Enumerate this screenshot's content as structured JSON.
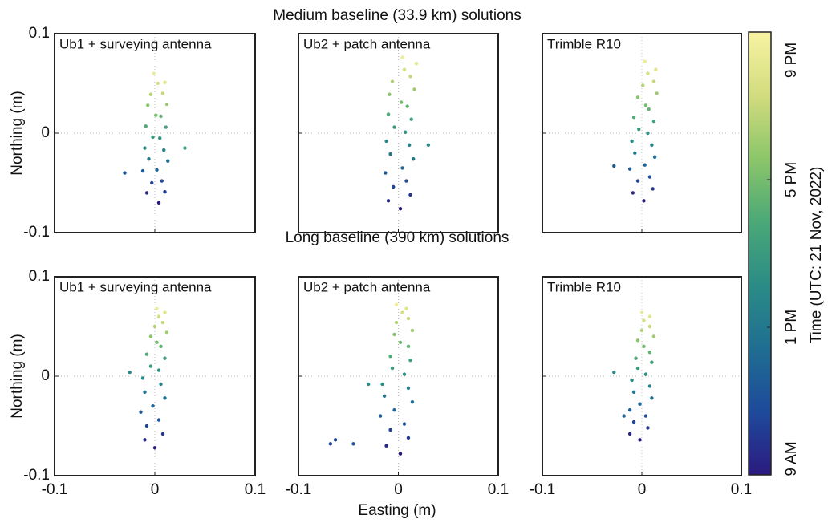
{
  "row_titles": [
    "Medium baseline (33.9 km) solutions",
    "Long baseline (390 km) solutions"
  ],
  "x_label": "Easting (m)",
  "y_label": "Northing (m)",
  "colorbar": {
    "label": "Time (UTC: 21 Nov, 2022)",
    "lim": [
      9,
      21
    ],
    "ticks": [
      {
        "value": 9,
        "label": "9 AM"
      },
      {
        "value": 13,
        "label": "1 PM"
      },
      {
        "value": 17,
        "label": "5 PM"
      },
      {
        "value": 21,
        "label": "9 PM"
      }
    ],
    "colors": [
      "#2b1a7f",
      "#1e4a9c",
      "#1f6e92",
      "#2a8c86",
      "#4aa877",
      "#8cc66a",
      "#d2dc7e",
      "#f8f3a2"
    ]
  },
  "chart_data": [
    {
      "type": "scatter",
      "title": "Ub1 + surveying antenna",
      "xlim": [
        -0.1,
        0.1
      ],
      "ylim": [
        -0.1,
        0.1
      ],
      "xticks": [
        -0.1,
        0,
        0.1
      ],
      "yticks": [
        -0.1,
        0,
        0.1
      ],
      "grid": true,
      "x": [
        0.004,
        -0.008,
        0.01,
        -0.003,
        0.007,
        -0.012,
        0.002,
        0.013,
        -0.006,
        0.009,
        -0.01,
        0.005,
        -0.002,
        0.011,
        -0.009,
        0.006,
        0.001,
        -0.007,
        0.012,
        -0.004,
        0.008,
        0.003,
        0.01,
        -0.001,
        -0.03,
        0.03
      ],
      "y": [
        -0.07,
        -0.06,
        -0.059,
        -0.05,
        -0.048,
        -0.038,
        -0.037,
        -0.028,
        -0.026,
        -0.017,
        -0.015,
        -0.005,
        -0.004,
        0.006,
        0.007,
        0.017,
        0.018,
        0.028,
        0.029,
        0.039,
        0.04,
        0.05,
        0.051,
        0.06,
        -0.04,
        -0.015
      ],
      "t": [
        9,
        9.5,
        10,
        10.5,
        11,
        11.5,
        12,
        12.5,
        13,
        13.5,
        14,
        14.5,
        15,
        15.5,
        16,
        16.5,
        17,
        17.5,
        18,
        18.5,
        19,
        19.5,
        20,
        20.5,
        11.5,
        15
      ]
    },
    {
      "type": "scatter",
      "title": "Ub2 + patch antenna",
      "xlim": [
        -0.1,
        0.1
      ],
      "ylim": [
        -0.1,
        0.1
      ],
      "xticks": [
        -0.1,
        0,
        0.1
      ],
      "yticks": [
        -0.1,
        0,
        0.1
      ],
      "grid": true,
      "x": [
        0.002,
        -0.01,
        0.012,
        -0.005,
        0.008,
        -0.013,
        0.004,
        0.015,
        -0.008,
        0.011,
        -0.012,
        0.007,
        -0.004,
        0.013,
        -0.01,
        0.009,
        0.003,
        -0.009,
        0.016,
        -0.006,
        0.012,
        0.006,
        0.018,
        0.004,
        0.03
      ],
      "y": [
        -0.076,
        -0.068,
        -0.062,
        -0.054,
        -0.048,
        -0.04,
        -0.035,
        -0.026,
        -0.021,
        -0.012,
        -0.008,
        0.001,
        0.006,
        0.014,
        0.019,
        0.027,
        0.031,
        0.039,
        0.044,
        0.052,
        0.057,
        0.064,
        0.07,
        0.076,
        -0.012
      ],
      "t": [
        9,
        9.5,
        10,
        10.5,
        11,
        11.5,
        12,
        12.5,
        13,
        13.5,
        14,
        14.5,
        15,
        15.5,
        16,
        16.5,
        17,
        17.5,
        18,
        18.5,
        19,
        19.5,
        20,
        20.5,
        14
      ]
    },
    {
      "type": "scatter",
      "title": "Trimble R10",
      "xlim": [
        -0.1,
        0.1
      ],
      "ylim": [
        -0.1,
        0.1
      ],
      "xticks": [
        -0.1,
        0,
        0.1
      ],
      "yticks": [
        -0.1,
        0,
        0.1
      ],
      "grid": true,
      "x": [
        0.002,
        -0.009,
        0.011,
        -0.004,
        0.008,
        -0.012,
        0.003,
        0.013,
        -0.007,
        0.01,
        -0.01,
        0.006,
        -0.003,
        0.012,
        -0.008,
        0.007,
        0.004,
        -0.004,
        0.015,
        0.001,
        0.012,
        0.006,
        0.014,
        0.003,
        -0.028
      ],
      "y": [
        -0.068,
        -0.06,
        -0.056,
        -0.048,
        -0.044,
        -0.036,
        -0.032,
        -0.024,
        -0.02,
        -0.012,
        -0.008,
        0.0,
        0.004,
        0.012,
        0.016,
        0.024,
        0.028,
        0.036,
        0.04,
        0.048,
        0.052,
        0.06,
        0.064,
        0.072,
        -0.033
      ],
      "t": [
        9,
        9.5,
        10,
        10.5,
        11,
        11.5,
        12,
        12.5,
        13,
        13.5,
        14,
        14.5,
        15,
        15.5,
        16,
        16.5,
        17,
        17.5,
        18,
        18.5,
        19,
        19.5,
        20,
        20.5,
        11.5
      ]
    },
    {
      "type": "scatter",
      "title": "Ub1 + surveying antenna",
      "xlim": [
        -0.1,
        0.1
      ],
      "ylim": [
        -0.1,
        0.1
      ],
      "xticks": [
        -0.1,
        0,
        0.1
      ],
      "yticks": [
        -0.1,
        0,
        0.1
      ],
      "grid": true,
      "x": [
        0.0,
        -0.01,
        0.008,
        -0.008,
        0.004,
        -0.014,
        -0.002,
        0.01,
        -0.01,
        0.006,
        -0.012,
        0.004,
        -0.004,
        0.01,
        -0.008,
        0.006,
        0.002,
        -0.004,
        0.012,
        0.0,
        0.008,
        0.004,
        0.01,
        0.002,
        -0.025
      ],
      "y": [
        -0.072,
        -0.064,
        -0.058,
        -0.05,
        -0.044,
        -0.036,
        -0.03,
        -0.022,
        -0.016,
        -0.008,
        -0.002,
        0.006,
        0.01,
        0.018,
        0.022,
        0.03,
        0.034,
        0.04,
        0.044,
        0.05,
        0.054,
        0.06,
        0.064,
        0.068,
        0.004
      ],
      "t": [
        9,
        9.5,
        10,
        10.5,
        11,
        11.5,
        12,
        12.5,
        13,
        13.5,
        14,
        14.5,
        15,
        15.5,
        16,
        16.5,
        17,
        17.5,
        18,
        18.5,
        19,
        19.5,
        20,
        20.5,
        14
      ]
    },
    {
      "type": "scatter",
      "title": "Ub2 + patch antenna",
      "xlim": [
        -0.1,
        0.1
      ],
      "ylim": [
        -0.1,
        0.1
      ],
      "xticks": [
        -0.1,
        0,
        0.1
      ],
      "yticks": [
        -0.1,
        0,
        0.1
      ],
      "grid": true,
      "x": [
        0.002,
        -0.012,
        0.01,
        -0.008,
        0.006,
        -0.018,
        -0.004,
        0.014,
        -0.014,
        0.01,
        -0.016,
        0.006,
        -0.006,
        0.012,
        -0.008,
        0.01,
        0.002,
        -0.004,
        0.014,
        -0.002,
        0.01,
        0.004,
        0.008,
        -0.002,
        -0.063,
        -0.068,
        -0.045,
        -0.03
      ],
      "y": [
        -0.078,
        -0.07,
        -0.062,
        -0.054,
        -0.048,
        -0.04,
        -0.034,
        -0.026,
        -0.02,
        -0.012,
        -0.008,
        0.002,
        0.008,
        0.016,
        0.02,
        0.03,
        0.034,
        0.042,
        0.046,
        0.054,
        0.058,
        0.064,
        0.068,
        0.072,
        -0.064,
        -0.068,
        -0.068,
        -0.008
      ],
      "t": [
        9,
        9.5,
        10,
        10.5,
        11,
        11.5,
        12,
        12.5,
        13,
        13.5,
        14,
        14.5,
        15,
        15.5,
        16,
        16.5,
        17,
        17.5,
        18,
        18.5,
        19,
        19.5,
        20,
        20.5,
        10.5,
        10.5,
        11,
        14
      ]
    },
    {
      "type": "scatter",
      "title": "Trimble R10",
      "xlim": [
        -0.1,
        0.1
      ],
      "ylim": [
        -0.1,
        0.1
      ],
      "xticks": [
        -0.1,
        0,
        0.1
      ],
      "yticks": [
        -0.1,
        0,
        0.1
      ],
      "grid": true,
      "x": [
        -0.002,
        -0.012,
        0.006,
        -0.008,
        0.004,
        -0.012,
        -0.002,
        0.01,
        -0.008,
        0.008,
        -0.01,
        0.004,
        -0.004,
        0.01,
        -0.006,
        0.008,
        0.002,
        -0.004,
        0.012,
        0.0,
        0.008,
        0.002,
        0.008,
        0.0,
        -0.028,
        -0.018
      ],
      "y": [
        -0.064,
        -0.058,
        -0.052,
        -0.046,
        -0.04,
        -0.034,
        -0.028,
        -0.022,
        -0.016,
        -0.01,
        -0.004,
        0.002,
        0.008,
        0.014,
        0.018,
        0.024,
        0.03,
        0.036,
        0.04,
        0.046,
        0.05,
        0.056,
        0.06,
        0.064,
        0.004,
        -0.04
      ],
      "t": [
        9,
        9.5,
        10,
        10.5,
        11,
        11.5,
        12,
        12.5,
        13,
        13.5,
        14,
        14.5,
        15,
        15.5,
        16,
        16.5,
        17,
        17.5,
        18,
        18.5,
        19,
        19.5,
        20,
        20.5,
        14,
        12
      ]
    }
  ]
}
